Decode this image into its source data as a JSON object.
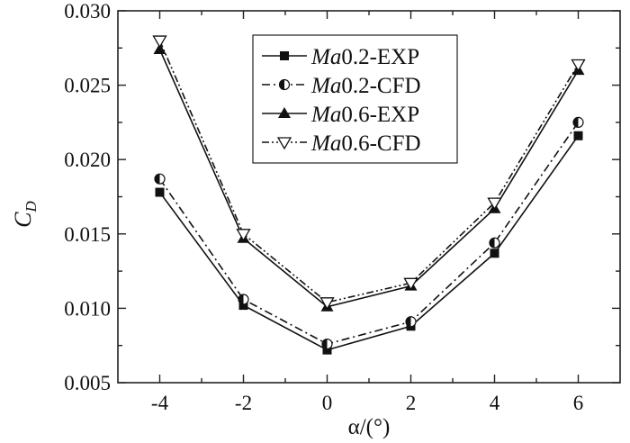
{
  "chart_data": {
    "type": "line",
    "title": "",
    "xlabel": "α/(°)",
    "ylabel_main": "C",
    "ylabel_sub": "D",
    "xlim": [
      -5,
      7
    ],
    "ylim": [
      0.005,
      0.03
    ],
    "x_ticks": [
      -4,
      -2,
      0,
      2,
      4,
      6
    ],
    "x_tick_labels": [
      "-4",
      "-2",
      "0",
      "2",
      "4",
      "6"
    ],
    "y_ticks": [
      0.005,
      0.01,
      0.015,
      0.02,
      0.025,
      0.03
    ],
    "y_tick_labels": [
      "0.005",
      "0.010",
      "0.015",
      "0.020",
      "0.025",
      "0.030"
    ],
    "grid": false,
    "legend_position": "top-center",
    "x": [
      -4,
      -2,
      0,
      2,
      4,
      6
    ],
    "series": [
      {
        "name_italic": "Ma",
        "name_rest": "0.2-EXP",
        "marker": "filled-square",
        "line": "solid",
        "values": [
          0.0178,
          0.0102,
          0.0072,
          0.0088,
          0.0137,
          0.0216
        ]
      },
      {
        "name_italic": "Ma",
        "name_rest": "0.2-CFD",
        "marker": "half-filled-circle",
        "line": "dash-dot",
        "values": [
          0.0187,
          0.0106,
          0.0076,
          0.0091,
          0.0144,
          0.0225
        ]
      },
      {
        "name_italic": "Ma",
        "name_rest": "0.6-EXP",
        "marker": "filled-triangle-up",
        "line": "solid",
        "values": [
          0.0274,
          0.0147,
          0.0101,
          0.0115,
          0.0167,
          0.026
        ]
      },
      {
        "name_italic": "Ma",
        "name_rest": "0.6-CFD",
        "marker": "open-triangle-down",
        "line": "dash-dot-dot",
        "values": [
          0.028,
          0.015,
          0.0104,
          0.0117,
          0.0171,
          0.0264
        ]
      }
    ]
  }
}
